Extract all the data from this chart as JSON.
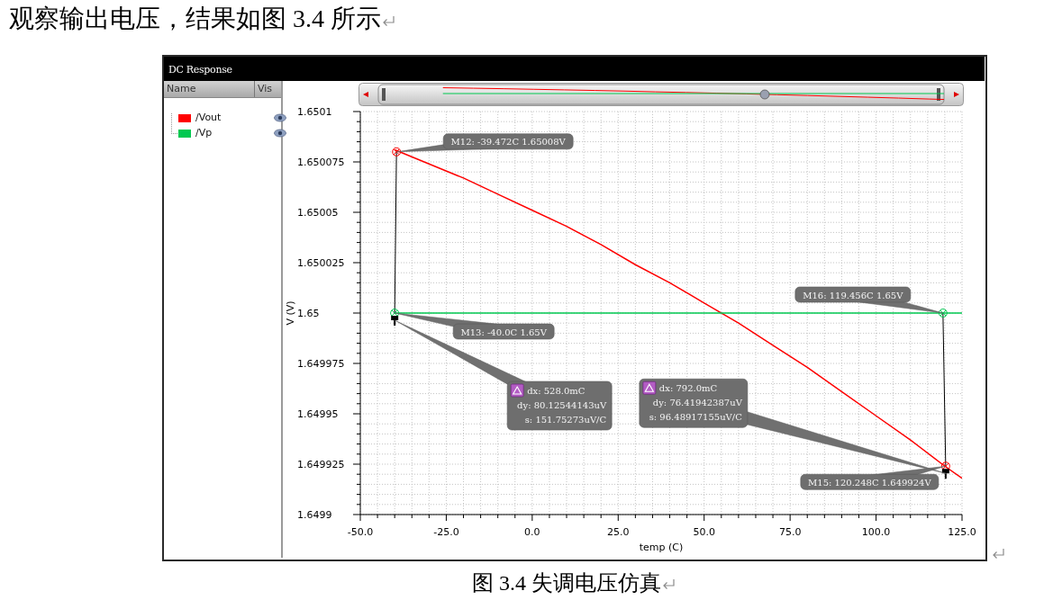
{
  "chart_data": {
    "type": "line",
    "title": "DC Response",
    "legend_title": "Name",
    "xlabel": "temp (C)",
    "ylabel": "V (V)",
    "xlim": [
      -50,
      125
    ],
    "ylim": [
      1.6499,
      1.6501
    ],
    "xticks": [
      {
        "value": -50,
        "label": "-50.0"
      },
      {
        "value": -45,
        "label": null
      },
      {
        "value": -40,
        "label": null
      },
      {
        "value": -35,
        "label": null
      },
      {
        "value": -30,
        "label": null
      },
      {
        "value": -25,
        "label": "-25.0"
      },
      {
        "value": -20,
        "label": null
      },
      {
        "value": -15,
        "label": null
      },
      {
        "value": -10,
        "label": null
      },
      {
        "value": -5,
        "label": null
      },
      {
        "value": 0,
        "label": "0.0"
      },
      {
        "value": 5,
        "label": null
      },
      {
        "value": 10,
        "label": null
      },
      {
        "value": 15,
        "label": null
      },
      {
        "value": 20,
        "label": null
      },
      {
        "value": 25,
        "label": "25.0"
      },
      {
        "value": 30,
        "label": null
      },
      {
        "value": 35,
        "label": null
      },
      {
        "value": 40,
        "label": null
      },
      {
        "value": 45,
        "label": null
      },
      {
        "value": 50,
        "label": "50.0"
      },
      {
        "value": 55,
        "label": null
      },
      {
        "value": 60,
        "label": null
      },
      {
        "value": 65,
        "label": null
      },
      {
        "value": 70,
        "label": null
      },
      {
        "value": 75,
        "label": "75.0"
      },
      {
        "value": 80,
        "label": null
      },
      {
        "value": 85,
        "label": null
      },
      {
        "value": 90,
        "label": null
      },
      {
        "value": 95,
        "label": null
      },
      {
        "value": 100,
        "label": "100.0"
      },
      {
        "value": 105,
        "label": null
      },
      {
        "value": 110,
        "label": null
      },
      {
        "value": 115,
        "label": null
      },
      {
        "value": 120,
        "label": null
      },
      {
        "value": 125,
        "label": "125.0"
      }
    ],
    "yticks": [
      1.6499,
      {
        "value": 1.649905,
        "label": null
      },
      {
        "value": 1.64991,
        "label": null
      },
      {
        "value": 1.649915,
        "label": null
      },
      {
        "value": 1.64992,
        "label": null
      },
      1.649925,
      {
        "value": 1.64993,
        "label": null
      },
      {
        "value": 1.649935,
        "label": null
      },
      {
        "value": 1.64994,
        "label": null
      },
      {
        "value": 1.649945,
        "label": null
      },
      1.64995,
      {
        "value": 1.649955,
        "label": null
      },
      {
        "value": 1.64996,
        "label": null
      },
      {
        "value": 1.649965,
        "label": null
      },
      {
        "value": 1.64997,
        "label": null
      },
      1.649975,
      {
        "value": 1.64998,
        "label": null
      },
      {
        "value": 1.649985,
        "label": null
      },
      {
        "value": 1.64999,
        "label": null
      },
      {
        "value": 1.649995,
        "label": null
      },
      1.65,
      {
        "value": 1.650005,
        "label": null
      },
      {
        "value": 1.65001,
        "label": null
      },
      {
        "value": 1.650015,
        "label": null
      },
      {
        "value": 1.65002,
        "label": null
      },
      1.650025,
      {
        "value": 1.65003,
        "label": null
      },
      {
        "value": 1.650035,
        "label": null
      },
      {
        "value": 1.65004,
        "label": null
      },
      {
        "value": 1.650045,
        "label": null
      },
      1.65005,
      {
        "value": 1.650055,
        "label": null
      },
      {
        "value": 1.65006,
        "label": null
      },
      {
        "value": 1.650065,
        "label": null
      },
      {
        "value": 1.65007,
        "label": null
      },
      1.650075,
      {
        "value": 1.65008,
        "label": null
      },
      {
        "value": 1.650085,
        "label": null
      },
      {
        "value": 1.65009,
        "label": null
      },
      {
        "value": 1.650095,
        "label": null
      },
      1.6501
    ],
    "series": [
      {
        "name": "/Vout",
        "color": "#ff0000",
        "x": [
          -40,
          -30,
          -20,
          -10,
          0,
          10,
          20,
          30,
          40,
          50,
          60,
          70,
          80,
          90,
          100,
          110,
          120,
          125
        ],
        "values": [
          1.650081,
          1.650074,
          1.650067,
          1.650059,
          1.650051,
          1.650043,
          1.650034,
          1.650024,
          1.650015,
          1.650005,
          1.649995,
          1.649984,
          1.649973,
          1.649961,
          1.649949,
          1.649937,
          1.649924,
          1.649918
        ]
      },
      {
        "name": "/Vp",
        "color": "#00c850",
        "x": [
          -40,
          125
        ],
        "values": [
          1.65,
          1.65
        ]
      }
    ],
    "grid": true,
    "legend": "left",
    "annotations": [
      "观察输出电压，结果如图 3.4 所示",
      "图 3.4 失调电压仿真",
      "Vis",
      {
        "text": "M12: -39.472C 1.65008V",
        "x": -39.472,
        "y": 1.65008
      },
      {
        "text": "M13: -40.0C 1.65V",
        "x": -40,
        "y": 1.65
      },
      {
        "text": "M16: 119.456C 1.65V",
        "x": 119.456,
        "y": 1.65
      },
      {
        "text": "M15: 120.248C 1.649924V",
        "x": 120.248,
        "y": 1.649924
      },
      "dx: 528.0mC\ndy: 80.12544143uV\ns: 151.75273uV/C",
      "dx: 792.0mC\ndy: 76.41942387uV\ns: 96.48917155uV/C"
    ]
  }
}
